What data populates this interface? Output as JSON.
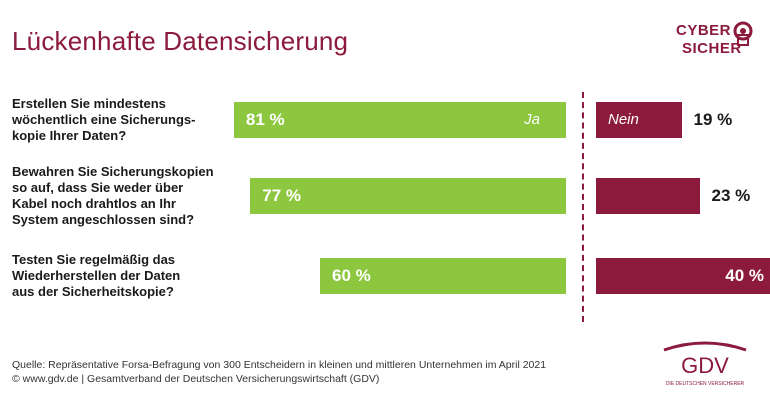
{
  "title": "Lückenhafte Datensicherung",
  "logo": {
    "line1": "CYBER",
    "line2": "SICHER"
  },
  "gdv_logo": {
    "text": "GDV",
    "subtext": "DIE DEUTSCHEN VERSICHERER"
  },
  "colors": {
    "ja": "#8dc63f",
    "nein": "#8b1a3c",
    "title": "#8b1a3c"
  },
  "chart_data": {
    "type": "bar",
    "orientation": "horizontal",
    "categories": [
      "Erstellen Sie mindestens wöchentlich eine Sicherungs-kopie Ihrer Daten?",
      "Bewahren Sie Sicherungskopien so auf, dass Sie weder über Kabel noch drahtlos an Ihr System angeschlossen sind?",
      "Testen Sie regelmäßig das Wiederherstellen der Daten aus der Sicherheitskopie?"
    ],
    "series": [
      {
        "name": "Ja",
        "values": [
          81,
          77,
          60
        ],
        "labels": [
          "81 %",
          "77 %",
          "60 %"
        ]
      },
      {
        "name": "Nein",
        "values": [
          19,
          23,
          40
        ],
        "labels": [
          "19 %",
          "23 %",
          "40 %"
        ]
      }
    ],
    "unit": "%"
  },
  "questions": [
    [
      "Erstellen Sie mindestens",
      "wöchentlich eine Sicherungs-",
      "kopie Ihrer Daten?"
    ],
    [
      "Bewahren Sie Sicherungskopien",
      "so auf, dass Sie weder über",
      "Kabel noch drahtlos an Ihr",
      "System angeschlossen sind?"
    ],
    [
      "Testen Sie regelmäßig das",
      "Wiederherstellen der Daten",
      "aus der Sicherheitskopie?"
    ]
  ],
  "source": {
    "line1": "Quelle: Repräsentative Forsa-Befragung von 300 Entscheidern in kleinen und mittleren Unternehmen im April 2021",
    "line2": "© www.gdv.de | Gesamtverband der Deutschen Versicherungswirtschaft (GDV)"
  }
}
